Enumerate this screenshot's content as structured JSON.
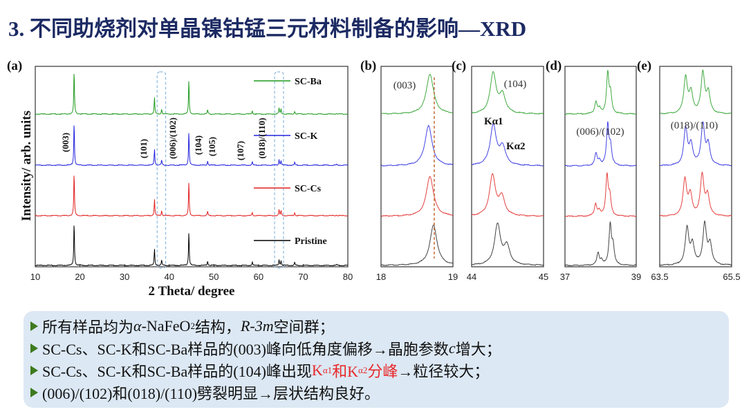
{
  "slide": {
    "title": "3. 不同助烧剂对单晶镍钴锰三元材料制备的影响—XRD"
  },
  "summary": {
    "bullets": [
      {
        "parts": [
          {
            "t": "所有样品均为"
          },
          {
            "t": "α",
            "i": true
          },
          {
            "t": "-NaFeO"
          },
          {
            "t": "2",
            "sub": true
          },
          {
            "t": "结构，"
          },
          {
            "t": "R-3m",
            "i": true
          },
          {
            "t": "空间群；"
          }
        ]
      },
      {
        "parts": [
          {
            "t": "SC-Cs、SC-K和SC-Ba样品的(003)峰向低角度偏移→晶胞参数"
          },
          {
            "t": "c",
            "i": true
          },
          {
            "t": "增大；"
          }
        ]
      },
      {
        "parts": [
          {
            "t": "SC-Cs、SC-K和SC-Ba样品的(104)峰出现"
          },
          {
            "t": "K",
            "red": true
          },
          {
            "t": "α1",
            "sub": true,
            "red": true
          },
          {
            "t": "和K",
            "red": true
          },
          {
            "t": "α2",
            "sub": true,
            "red": true
          },
          {
            "t": "分峰",
            "red": true
          },
          {
            "t": "→粒径较大；"
          }
        ]
      },
      {
        "parts": [
          {
            "t": "(006)/(102)和(018)/(110)劈裂明显→层状结构良好。"
          }
        ]
      }
    ]
  },
  "colors": {
    "title": "#1c2a63",
    "Pristine": "#000000",
    "SC-Cs": "#e0201f",
    "SC-K": "#2222dd",
    "SC-Ba": "#1e9a1e",
    "highlight": "#e8282a",
    "box": "#dce8f4"
  },
  "chart_data": [
    {
      "panel": "(a)",
      "type": "line",
      "xlabel": "2 Theta/ degree",
      "ylabel": "Intensity/ arb. units",
      "xlim": [
        10,
        80
      ],
      "xticks": [
        10,
        20,
        30,
        40,
        50,
        60,
        70,
        80
      ],
      "legend": [
        "SC-Ba",
        "SC-K",
        "SC-Cs",
        "Pristine"
      ],
      "legend_position": "right",
      "series_order_top_to_bottom": [
        "SC-Ba",
        "SC-K",
        "SC-Cs",
        "Pristine"
      ],
      "peaks": [
        {
          "hkl": "(003)",
          "x": 18.7,
          "rel": 1.0
        },
        {
          "hkl": "(101)",
          "x": 36.7,
          "rel": 0.38
        },
        {
          "hkl": "(006)/(102)",
          "x": 38.3,
          "rel": 0.12
        },
        {
          "hkl": "(104)",
          "x": 44.4,
          "rel": 0.78
        },
        {
          "hkl": "(105)",
          "x": 48.6,
          "rel": 0.1
        },
        {
          "hkl": "(107)",
          "x": 58.6,
          "rel": 0.08
        },
        {
          "hkl": "(018)/(110)",
          "x": 64.6,
          "rel": 0.14
        },
        {
          "hkl": "",
          "x": 68.1,
          "rel": 0.07
        },
        {
          "hkl": "",
          "x": 77.5,
          "rel": 0.02
        }
      ],
      "highlight_regions": [
        [
          37.3,
          39.2
        ],
        [
          63.6,
          65.6
        ]
      ]
    },
    {
      "panel": "(b)",
      "type": "line",
      "annotation": "(003)",
      "xlim": [
        18,
        19
      ],
      "xticks": [
        18,
        19
      ],
      "peak_positions": {
        "SC-Ba": 18.68,
        "SC-K": 18.66,
        "SC-Cs": 18.68,
        "Pristine": 18.73
      },
      "reference_line_x": 18.74
    },
    {
      "panel": "(c)",
      "type": "line",
      "annotation": "(104)",
      "labels": [
        "Kα1",
        "Kα2"
      ],
      "xlim": [
        44,
        45
      ],
      "xticks": [
        44,
        45
      ],
      "peak_positions": {
        "SC-Ba": 44.3,
        "SC-K": 44.3,
        "SC-Cs": 44.29,
        "Pristine": 44.36
      }
    },
    {
      "panel": "(d)",
      "type": "line",
      "annotation": "(006)/(102)",
      "xlim": [
        37,
        39
      ],
      "xticks": [
        37,
        39
      ],
      "peak_positions": {
        "SC-Ba": [
          37.87,
          38.2
        ],
        "SC-K": [
          37.87,
          38.2
        ],
        "SC-Cs": [
          37.86,
          38.18
        ],
        "Pristine": [
          37.93,
          38.27
        ]
      }
    },
    {
      "panel": "(e)",
      "type": "line",
      "annotation": "(018)/(110)",
      "xlim": [
        63.5,
        65.5
      ],
      "xticks": [
        63.5,
        65.5
      ],
      "peak_positions": {
        "SC-Ba": [
          64.22,
          64.7
        ],
        "SC-K": [
          64.22,
          64.7
        ],
        "SC-Cs": [
          64.2,
          64.68
        ],
        "Pristine": [
          64.26,
          64.75
        ]
      }
    }
  ]
}
